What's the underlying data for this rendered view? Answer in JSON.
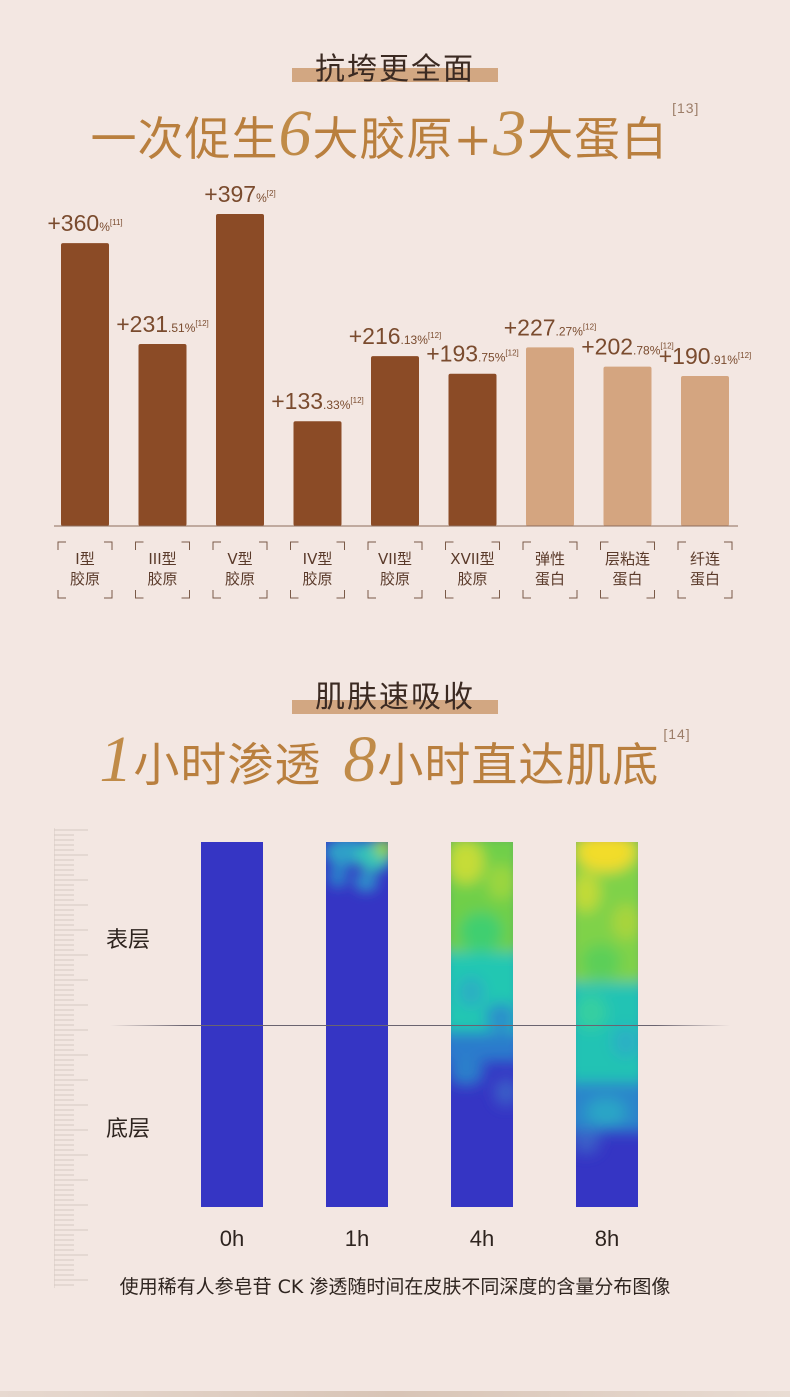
{
  "section1": {
    "tag": "抗垮更全面",
    "headline": {
      "p1": "一次促生",
      "n1": "6",
      "p2": "大胶原+",
      "n2": "3",
      "p3": "大蛋白",
      "ref": "[13]"
    }
  },
  "chart_data": {
    "type": "bar",
    "categories": [
      [
        "I型",
        "胶原"
      ],
      [
        "III型",
        "胶原"
      ],
      [
        "V型",
        "胶原"
      ],
      [
        "IV型",
        "胶原"
      ],
      [
        "VII型",
        "胶原"
      ],
      [
        "XVII型",
        "胶原"
      ],
      [
        "弹性",
        "蛋白"
      ],
      [
        "层粘连",
        "蛋白"
      ],
      [
        "纤连",
        "蛋白"
      ]
    ],
    "values": [
      360,
      231.51,
      397,
      133.33,
      216.13,
      193.75,
      227.27,
      202.78,
      190.91
    ],
    "labels": [
      {
        "main": "+360",
        "small": "%",
        "ref": "[11]"
      },
      {
        "main": "+231",
        "small": ".51%",
        "ref": "[12]"
      },
      {
        "main": "+397",
        "small": "%",
        "ref": "[2]"
      },
      {
        "main": "+133",
        "small": ".33%",
        "ref": "[12]"
      },
      {
        "main": "+216",
        "small": ".13%",
        "ref": "[12]"
      },
      {
        "main": "+193",
        "small": ".75%",
        "ref": "[12]"
      },
      {
        "main": "+227",
        "small": ".27%",
        "ref": "[12]"
      },
      {
        "main": "+202",
        "small": ".78%",
        "ref": "[12]"
      },
      {
        "main": "+190",
        "small": ".91%",
        "ref": "[12]"
      }
    ],
    "colors": [
      "#8b4b26",
      "#8b4b26",
      "#8b4b26",
      "#8b4b26",
      "#8b4b26",
      "#8b4b26",
      "#d4a580",
      "#d4a580",
      "#d4a580"
    ],
    "ylim": [
      0,
      420
    ]
  },
  "section2": {
    "tag": "肌肤速吸收",
    "headline": {
      "n1": "1",
      "p1": "小时渗透",
      "n2": "8",
      "p2": "小时直达肌底",
      "ref": "[14]"
    },
    "layers": {
      "top": "表层",
      "bottom": "底层"
    },
    "times": [
      "0h",
      "1h",
      "4h",
      "8h"
    ],
    "caption": "使用稀有人参皂苷 CK 渗透随时间在皮肤不同深度的含量分布图像",
    "colors": {
      "low": "#3535c4",
      "mid": "#1fc7b4",
      "high": "#f4dc28"
    }
  }
}
